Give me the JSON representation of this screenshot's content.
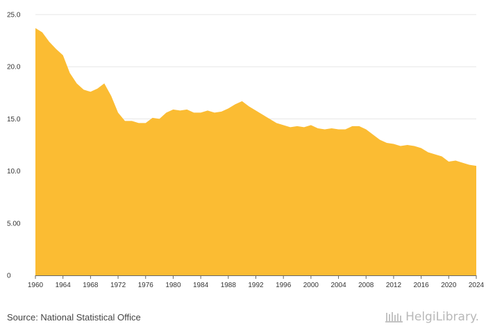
{
  "chart_data": {
    "type": "area",
    "x": [
      1960,
      1961,
      1962,
      1963,
      1964,
      1965,
      1966,
      1967,
      1968,
      1969,
      1970,
      1971,
      1972,
      1973,
      1974,
      1975,
      1976,
      1977,
      1978,
      1979,
      1980,
      1981,
      1982,
      1983,
      1984,
      1985,
      1986,
      1987,
      1988,
      1989,
      1990,
      1991,
      1992,
      1993,
      1994,
      1995,
      1996,
      1997,
      1998,
      1999,
      2000,
      2001,
      2002,
      2003,
      2004,
      2005,
      2006,
      2007,
      2008,
      2009,
      2010,
      2011,
      2012,
      2013,
      2014,
      2015,
      2016,
      2017,
      2018,
      2019,
      2020,
      2021,
      2022,
      2023,
      2024
    ],
    "series": [
      {
        "values": [
          23.7,
          23.3,
          22.4,
          21.7,
          21.1,
          19.4,
          18.4,
          17.8,
          17.6,
          17.9,
          18.4,
          17.2,
          15.6,
          14.8,
          14.8,
          14.6,
          14.6,
          15.1,
          15.0,
          15.6,
          15.9,
          15.8,
          15.9,
          15.6,
          15.6,
          15.8,
          15.6,
          15.7,
          16.0,
          16.4,
          16.7,
          16.2,
          15.8,
          15.4,
          15.0,
          14.6,
          14.4,
          14.2,
          14.3,
          14.2,
          14.4,
          14.1,
          14.0,
          14.1,
          14.0,
          14.0,
          14.3,
          14.3,
          14.0,
          13.5,
          13.0,
          12.7,
          12.6,
          12.4,
          12.5,
          12.4,
          12.2,
          11.8,
          11.6,
          11.4,
          10.9,
          11.0,
          10.8,
          10.6,
          10.5
        ],
        "color": "#fbbc33"
      }
    ],
    "ylim": [
      0,
      25
    ],
    "y_ticks": [
      "0",
      "5.00",
      "10.0",
      "15.0",
      "20.0",
      "25.0"
    ],
    "x_ticks": [
      "1960",
      "1964",
      "1968",
      "1972",
      "1976",
      "1980",
      "1984",
      "1988",
      "1992",
      "1996",
      "2000",
      "2004",
      "2008",
      "2012",
      "2016",
      "2020",
      "2024"
    ],
    "grid": true,
    "legend": "none",
    "title": "",
    "xlabel": "",
    "ylabel": ""
  },
  "source": {
    "text": "Source: National Statistical Office"
  },
  "logo": {
    "text": "HelgiLibrary.",
    "icon": "library-columns-icon"
  },
  "colors": {
    "area": "#fbbc33",
    "grid": "#e6e6e6",
    "axis": "#666666"
  }
}
